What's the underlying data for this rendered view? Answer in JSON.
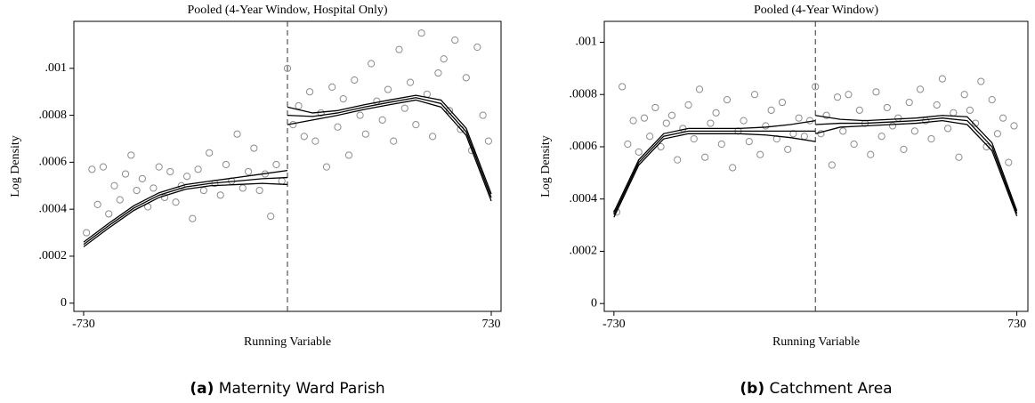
{
  "chart_data": [
    {
      "type": "scatter",
      "title": "Pooled (4-Year Window, Hospital Only)",
      "xlabel": "Running Variable",
      "ylabel": "Log Density",
      "caption_label": "(a)",
      "caption": "Maternity Ward Parish",
      "marker_color": "#8c8c8c",
      "line_color": "#000000",
      "vline": 0,
      "xlim": [
        -765,
        765
      ],
      "ylim": [
        -3.5e-05,
        0.0012
      ],
      "xticks": [
        -730,
        730
      ],
      "yticks": [
        0,
        {
          "value": 0.0002,
          "label": ".0002"
        },
        {
          "value": 0.0004,
          "label": ".0004"
        },
        {
          "value": 0.0006,
          "label": ".0006"
        },
        {
          "value": 0.0008,
          "label": ".0008"
        },
        {
          "value": 0.001,
          "label": ".001"
        }
      ],
      "x": [
        -720,
        -700,
        -680,
        -660,
        -640,
        -620,
        -600,
        -580,
        -560,
        -540,
        -520,
        -500,
        -480,
        -460,
        -440,
        -420,
        -400,
        -380,
        -360,
        -340,
        -320,
        -300,
        -280,
        -260,
        -240,
        -220,
        -200,
        -180,
        -160,
        -140,
        -120,
        -100,
        -80,
        -60,
        -40,
        -20,
        0,
        20,
        40,
        60,
        80,
        100,
        120,
        140,
        160,
        180,
        200,
        220,
        240,
        260,
        280,
        300,
        320,
        340,
        360,
        380,
        400,
        420,
        440,
        460,
        480,
        500,
        520,
        540,
        560,
        580,
        600,
        620,
        640,
        660,
        680,
        700,
        720
      ],
      "values": [
        0.0003,
        0.00057,
        0.00042,
        0.00058,
        0.00038,
        0.0005,
        0.00044,
        0.00055,
        0.00063,
        0.00048,
        0.00053,
        0.00041,
        0.00049,
        0.00058,
        0.00045,
        0.00056,
        0.00043,
        0.0005,
        0.00054,
        0.00036,
        0.00057,
        0.00048,
        0.00064,
        0.00051,
        0.00046,
        0.00059,
        0.00052,
        0.00072,
        0.00049,
        0.00056,
        0.00066,
        0.00048,
        0.00055,
        0.00037,
        0.00059,
        0.00052,
        0.001,
        0.00076,
        0.00084,
        0.00071,
        0.0009,
        0.00069,
        0.00081,
        0.00058,
        0.00092,
        0.00075,
        0.00087,
        0.00063,
        0.00095,
        0.0008,
        0.00072,
        0.00102,
        0.00086,
        0.00078,
        0.00091,
        0.00069,
        0.00108,
        0.00083,
        0.00094,
        0.00076,
        0.00115,
        0.00089,
        0.00071,
        0.00098,
        0.00104,
        0.00082,
        0.00112,
        0.00074,
        0.00096,
        0.00065,
        0.00109,
        0.0008,
        0.00069
      ],
      "lines": [
        {
          "x": [
            -730,
            -640,
            -550,
            -460,
            -365,
            -275,
            -180,
            -90,
            0
          ],
          "values": [
            0.00025,
            0.00033,
            0.000405,
            0.00046,
            0.000495,
            0.00051,
            0.00052,
            0.00053,
            0.000535
          ]
        },
        {
          "x": [
            -730,
            -640,
            -550,
            -460,
            -365,
            -275,
            -180,
            -90,
            0
          ],
          "values": [
            0.00026,
            0.00034,
            0.000415,
            0.00047,
            0.000505,
            0.00052,
            0.000535,
            0.00055,
            0.000565
          ]
        },
        {
          "x": [
            -730,
            -640,
            -550,
            -460,
            -365,
            -275,
            -180,
            -90,
            0
          ],
          "values": [
            0.00024,
            0.00032,
            0.000395,
            0.00045,
            0.000485,
            0.0005,
            0.000505,
            0.00051,
            0.000505
          ]
        },
        {
          "x": [
            0,
            90,
            180,
            275,
            365,
            460,
            550,
            640,
            730
          ],
          "values": [
            0.0008,
            0.000795,
            0.00081,
            0.000835,
            0.000855,
            0.000875,
            0.00085,
            0.00073,
            0.00045
          ]
        },
        {
          "x": [
            0,
            90,
            180,
            275,
            365,
            460,
            550,
            640,
            730
          ],
          "values": [
            0.000835,
            0.00081,
            0.00082,
            0.000845,
            0.000865,
            0.000885,
            0.000865,
            0.000745,
            0.000465
          ]
        },
        {
          "x": [
            0,
            90,
            180,
            275,
            365,
            460,
            550,
            640,
            730
          ],
          "values": [
            0.00076,
            0.00078,
            0.0008,
            0.000825,
            0.000845,
            0.000865,
            0.000835,
            0.000715,
            0.000435
          ]
        }
      ]
    },
    {
      "type": "scatter",
      "title": "Pooled (4-Year Window)",
      "xlabel": "Running Variable",
      "ylabel": "Log Density",
      "caption_label": "(b)",
      "caption": "Catchment Area",
      "marker_color": "#8c8c8c",
      "line_color": "#000000",
      "vline": 0,
      "xlim": [
        -765,
        770
      ],
      "ylim": [
        -3e-05,
        0.00108
      ],
      "xticks": [
        -730,
        730
      ],
      "yticks": [
        0,
        {
          "value": 0.0002,
          "label": ".0002"
        },
        {
          "value": 0.0004,
          "label": ".0004"
        },
        {
          "value": 0.0006,
          "label": ".0006"
        },
        {
          "value": 0.0008,
          "label": ".0008"
        },
        {
          "value": 0.001,
          "label": ".001"
        }
      ],
      "x": [
        -720,
        -700,
        -680,
        -660,
        -640,
        -620,
        -600,
        -580,
        -560,
        -540,
        -520,
        -500,
        -480,
        -460,
        -440,
        -420,
        -400,
        -380,
        -360,
        -340,
        -320,
        -300,
        -280,
        -260,
        -240,
        -220,
        -200,
        -180,
        -160,
        -140,
        -120,
        -100,
        -80,
        -60,
        -40,
        -20,
        0,
        20,
        40,
        60,
        80,
        100,
        120,
        140,
        160,
        180,
        200,
        220,
        240,
        260,
        280,
        300,
        320,
        340,
        360,
        380,
        400,
        420,
        440,
        460,
        480,
        500,
        520,
        540,
        560,
        580,
        600,
        620,
        640,
        660,
        680,
        700,
        720
      ],
      "values": [
        0.00035,
        0.00083,
        0.00061,
        0.0007,
        0.00058,
        0.00071,
        0.00064,
        0.00075,
        0.0006,
        0.00069,
        0.00072,
        0.00055,
        0.00067,
        0.00076,
        0.00063,
        0.00082,
        0.00056,
        0.00069,
        0.00073,
        0.00061,
        0.00078,
        0.00052,
        0.00066,
        0.0007,
        0.00062,
        0.0008,
        0.00057,
        0.00068,
        0.00074,
        0.00063,
        0.00077,
        0.00059,
        0.00065,
        0.00071,
        0.00064,
        0.0007,
        0.00083,
        0.00065,
        0.00072,
        0.00053,
        0.00079,
        0.00066,
        0.0008,
        0.00061,
        0.00074,
        0.00069,
        0.00057,
        0.00081,
        0.00064,
        0.00075,
        0.00068,
        0.00071,
        0.00059,
        0.00077,
        0.00066,
        0.00082,
        0.0007,
        0.00063,
        0.00076,
        0.00086,
        0.00067,
        0.00073,
        0.00056,
        0.0008,
        0.00074,
        0.00069,
        0.00085,
        0.0006,
        0.00078,
        0.00065,
        0.00071,
        0.00054,
        0.00068
      ],
      "lines": [
        {
          "x": [
            -730,
            -640,
            -550,
            -460,
            -365,
            -275,
            -180,
            -90,
            0
          ],
          "values": [
            0.00034,
            0.00054,
            0.00064,
            0.00066,
            0.00066,
            0.00066,
            0.00066,
            0.00066,
            0.00066
          ]
        },
        {
          "x": [
            -730,
            -640,
            -550,
            -460,
            -365,
            -275,
            -180,
            -90,
            0
          ],
          "values": [
            0.00035,
            0.00055,
            0.00065,
            0.00067,
            0.00067,
            0.00067,
            0.000675,
            0.000685,
            0.0007
          ]
        },
        {
          "x": [
            -730,
            -640,
            -550,
            -460,
            -365,
            -275,
            -180,
            -90,
            0
          ],
          "values": [
            0.00033,
            0.00053,
            0.00063,
            0.00065,
            0.00065,
            0.00065,
            0.000645,
            0.000635,
            0.00062
          ]
        },
        {
          "x": [
            0,
            90,
            180,
            275,
            365,
            460,
            550,
            640,
            730
          ],
          "values": [
            0.000685,
            0.00069,
            0.00069,
            0.000695,
            0.0007,
            0.00071,
            0.0007,
            0.0006,
            0.000345
          ]
        },
        {
          "x": [
            0,
            90,
            180,
            275,
            365,
            460,
            550,
            640,
            730
          ],
          "values": [
            0.00072,
            0.000705,
            0.0007,
            0.000705,
            0.00071,
            0.00072,
            0.000715,
            0.000615,
            0.000355
          ]
        },
        {
          "x": [
            0,
            90,
            180,
            275,
            365,
            460,
            550,
            640,
            730
          ],
          "values": [
            0.00065,
            0.000675,
            0.00068,
            0.000685,
            0.00069,
            0.0007,
            0.000685,
            0.000585,
            0.000335
          ]
        }
      ]
    }
  ]
}
